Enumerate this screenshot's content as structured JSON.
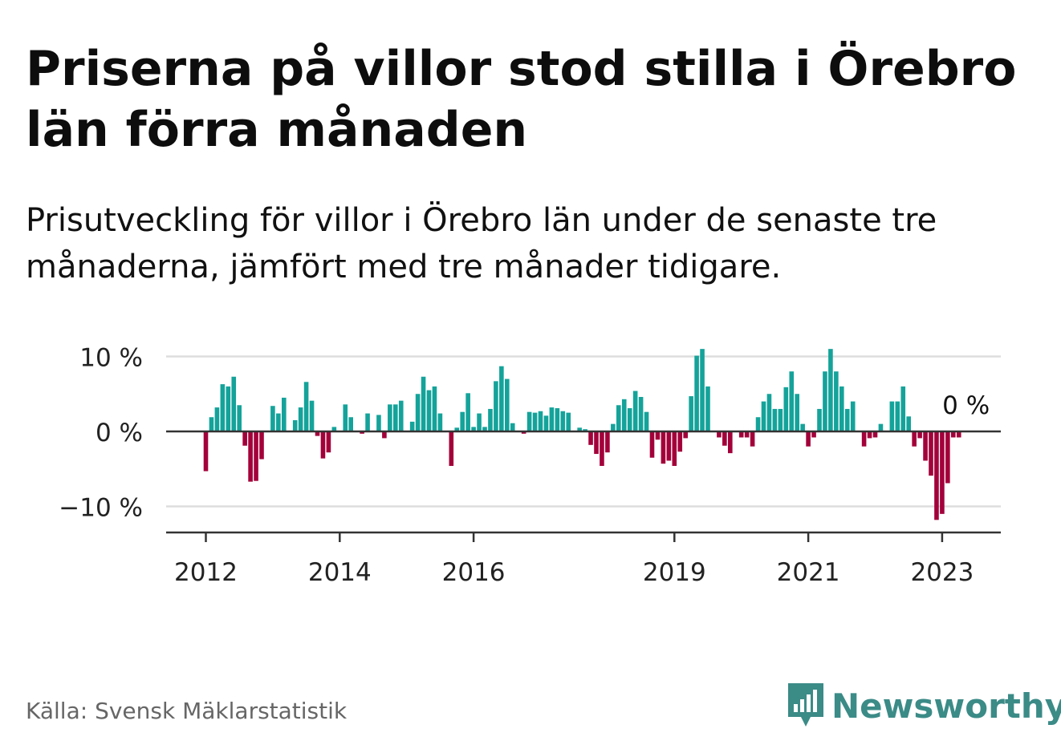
{
  "title": "Priserna på villor stod stilla i Örebro län förra månaden",
  "subtitle": "Prisutveckling för villor i Örebro län under de senaste tre månaderna, jämfört med tre månader tidigare.",
  "source": "Källa: Svensk Mäklarstatistik",
  "brand": "Newsworthy",
  "colors": {
    "positive": "#14a39a",
    "negative": "#a3003a",
    "logo": "#3b8b87"
  },
  "chart_data": {
    "type": "bar",
    "unit": "%",
    "x_start": "2012-01",
    "x_step": "month",
    "yticks": [
      10,
      0,
      -10
    ],
    "ytick_labels": [
      "10 %",
      "0 %",
      "−10 %"
    ],
    "ylim": [
      -13.5,
      10.5
    ],
    "xtick_labels": [
      {
        "label": "2012",
        "date": "2012-01"
      },
      {
        "label": "2014",
        "date": "2014-01"
      },
      {
        "label": "2016",
        "date": "2016-01"
      },
      {
        "label": "2019",
        "date": "2019-01"
      },
      {
        "label": "2021",
        "date": "2021-01"
      },
      {
        "label": "2023",
        "date": "2023-01"
      }
    ],
    "last_value_label": "0 %",
    "values": [
      -5.3,
      1.9,
      3.2,
      6.3,
      6.0,
      7.3,
      3.5,
      -1.9,
      -6.7,
      -6.6,
      -3.7,
      0.0,
      3.4,
      2.4,
      4.5,
      0.0,
      1.5,
      3.2,
      6.6,
      4.1,
      -0.6,
      -3.6,
      -2.8,
      0.6,
      0.0,
      3.6,
      1.9,
      0.0,
      -0.3,
      2.4,
      0.0,
      2.2,
      -0.9,
      3.6,
      3.6,
      4.1,
      0.0,
      1.3,
      5.0,
      7.3,
      5.5,
      6.0,
      2.4,
      0.0,
      -4.6,
      0.5,
      2.6,
      5.1,
      0.6,
      2.4,
      0.6,
      3.0,
      6.7,
      8.7,
      7.0,
      1.1,
      0.0,
      -0.3,
      2.6,
      2.5,
      2.7,
      2.1,
      3.2,
      3.1,
      2.7,
      2.5,
      0.0,
      0.5,
      0.3,
      -1.8,
      -3.0,
      -4.6,
      -2.8,
      1.0,
      3.5,
      4.3,
      3.1,
      5.4,
      4.6,
      2.6,
      -3.5,
      -1.1,
      -4.3,
      -3.9,
      -4.6,
      -2.7,
      -0.9,
      4.7,
      10.1,
      11.0,
      6.0,
      0.0,
      -0.8,
      -1.9,
      -2.9,
      0.0,
      -0.8,
      -0.8,
      -2.0,
      1.9,
      4.0,
      5.0,
      3.0,
      3.0,
      5.9,
      8.0,
      5.0,
      1.0,
      -2.0,
      -0.8,
      3.0,
      8.0,
      11.0,
      8.0,
      6.0,
      3.0,
      4.0,
      0.0,
      -2.0,
      -0.9,
      -0.8,
      1.0,
      0.0,
      4.0,
      4.0,
      6.0,
      2.0,
      -2.0,
      -0.9,
      -3.9,
      -5.9,
      -11.8,
      -11.0,
      -6.9,
      -0.8,
      -0.8,
      0.0
    ]
  }
}
